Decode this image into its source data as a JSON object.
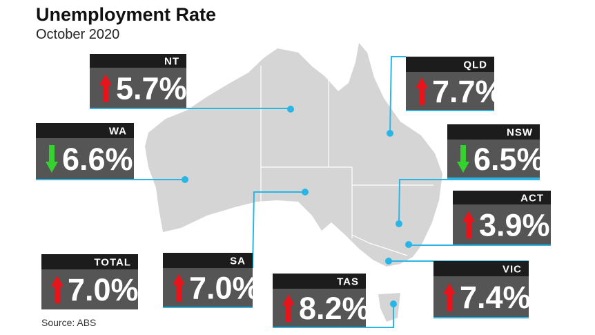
{
  "title": "Unemployment Rate",
  "subtitle": "October 2020",
  "source": "Source: ABS",
  "regions": [
    {
      "name": "NT",
      "value": "5.7%",
      "trend": "up"
    },
    {
      "name": "QLD",
      "value": "7.7%",
      "trend": "up"
    },
    {
      "name": "WA",
      "value": "6.6%",
      "trend": "down"
    },
    {
      "name": "NSW",
      "value": "6.5%",
      "trend": "down"
    },
    {
      "name": "ACT",
      "value": "3.9%",
      "trend": "up"
    },
    {
      "name": "SA",
      "value": "7.0%",
      "trend": "up"
    },
    {
      "name": "TAS",
      "value": "8.2%",
      "trend": "up"
    },
    {
      "name": "VIC",
      "value": "7.4%",
      "trend": "up"
    },
    {
      "name": "TOTAL",
      "value": "7.0%",
      "trend": "up"
    }
  ]
}
